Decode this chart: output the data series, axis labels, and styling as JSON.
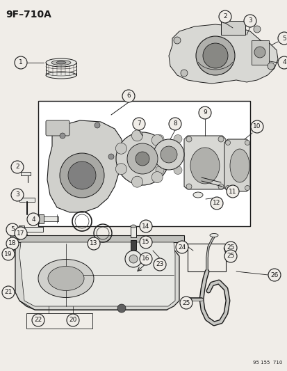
{
  "title": "9F–710A",
  "footer": "95 155  710",
  "bg_color": "#f0ede8",
  "line_color": "#1a1a1a",
  "text_color": "#1a1a1a",
  "white": "#ffffff",
  "light_gray": "#e8e8e4",
  "mid_gray": "#c0c0bc",
  "dark_gray": "#808080"
}
